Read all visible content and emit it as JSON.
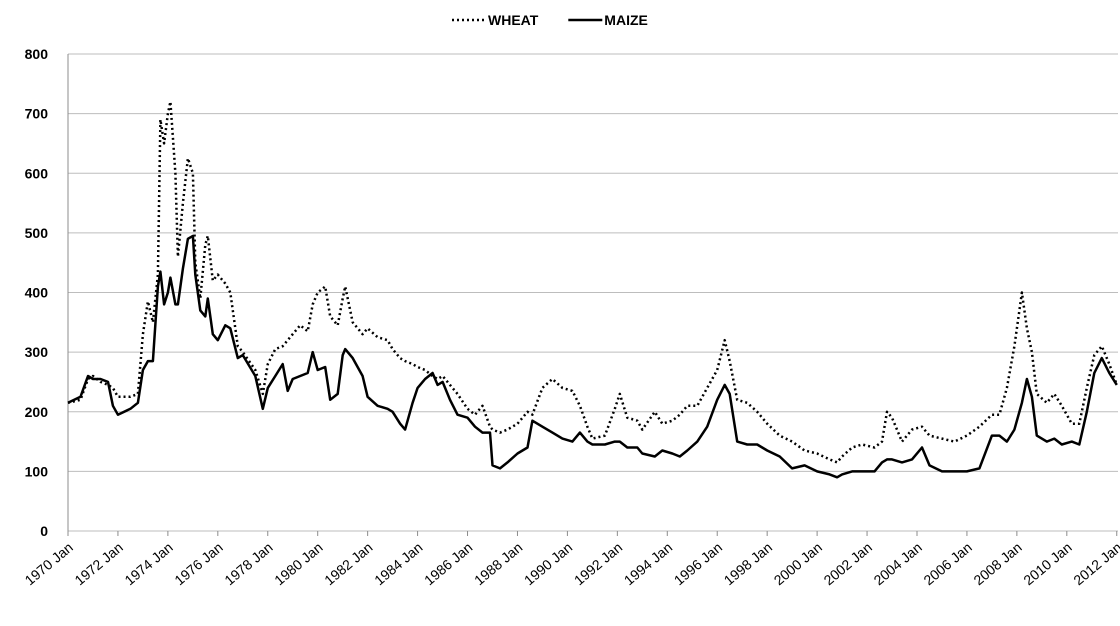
{
  "chart_data": {
    "type": "line",
    "x": [
      1970.0,
      1970.5,
      1970.8,
      1971.0,
      1971.3,
      1971.6,
      1971.8,
      1972.0,
      1972.5,
      1972.8,
      1973.0,
      1973.2,
      1973.4,
      1973.6,
      1973.7,
      1973.85,
      1974.0,
      1974.1,
      1974.3,
      1974.4,
      1974.6,
      1974.8,
      1975.0,
      1975.1,
      1975.3,
      1975.5,
      1975.6,
      1975.8,
      1976.0,
      1976.3,
      1976.5,
      1976.8,
      1977.0,
      1977.5,
      1977.8,
      1978.0,
      1978.3,
      1978.6,
      1978.8,
      1979.0,
      1979.3,
      1979.6,
      1979.8,
      1980.0,
      1980.3,
      1980.5,
      1980.8,
      1981.0,
      1981.1,
      1981.4,
      1981.8,
      1982.0,
      1982.4,
      1982.8,
      1983.0,
      1983.3,
      1983.5,
      1983.8,
      1984.0,
      1984.3,
      1984.6,
      1984.8,
      1985.0,
      1985.3,
      1985.6,
      1986.0,
      1986.3,
      1986.6,
      1986.9,
      1987.0,
      1987.3,
      1987.6,
      1988.0,
      1988.4,
      1988.6,
      1989.0,
      1989.4,
      1989.8,
      1990.2,
      1990.5,
      1990.8,
      1991.0,
      1991.5,
      1991.9,
      1992.1,
      1992.4,
      1992.8,
      1993.0,
      1993.5,
      1993.8,
      1994.2,
      1994.5,
      1994.8,
      1995.2,
      1995.6,
      1996.0,
      1996.3,
      1996.5,
      1996.8,
      1997.2,
      1997.6,
      1998.0,
      1998.5,
      1999.0,
      1999.5,
      2000.0,
      2000.5,
      2000.8,
      2001.0,
      2001.4,
      2001.8,
      2002.3,
      2002.6,
      2002.8,
      2003.0,
      2003.4,
      2003.8,
      2004.2,
      2004.5,
      2005.0,
      2005.5,
      2006.0,
      2006.5,
      2007.0,
      2007.3,
      2007.6,
      2007.9,
      2008.2,
      2008.4,
      2008.6,
      2008.8,
      2009.2,
      2009.5,
      2009.8,
      2010.2,
      2010.5,
      2010.8,
      2011.1,
      2011.4,
      2011.7,
      2012.0
    ],
    "series": [
      {
        "name": "WHEAT",
        "color": "#000000",
        "dash": "dotted",
        "values": [
          215,
          220,
          255,
          260,
          250,
          245,
          240,
          225,
          225,
          230,
          330,
          385,
          350,
          430,
          690,
          650,
          700,
          720,
          600,
          460,
          550,
          625,
          600,
          450,
          390,
          480,
          495,
          420,
          430,
          415,
          400,
          310,
          300,
          270,
          230,
          280,
          305,
          310,
          320,
          330,
          345,
          335,
          380,
          400,
          410,
          360,
          345,
          390,
          410,
          350,
          330,
          340,
          325,
          320,
          305,
          290,
          285,
          280,
          275,
          270,
          260,
          255,
          260,
          245,
          230,
          205,
          195,
          210,
          175,
          170,
          165,
          170,
          180,
          200,
          195,
          240,
          255,
          240,
          235,
          210,
          175,
          155,
          160,
          205,
          230,
          190,
          185,
          170,
          200,
          180,
          185,
          195,
          210,
          210,
          240,
          270,
          320,
          285,
          220,
          215,
          200,
          180,
          160,
          150,
          135,
          130,
          120,
          115,
          125,
          140,
          145,
          140,
          150,
          200,
          190,
          150,
          170,
          175,
          160,
          155,
          150,
          160,
          175,
          195,
          195,
          240,
          310,
          400,
          340,
          300,
          230,
          215,
          230,
          210,
          180,
          180,
          240,
          295,
          310,
          280,
          245
        ]
      },
      {
        "name": "MAIZE",
        "color": "#000000",
        "dash": "solid",
        "values": [
          215,
          225,
          260,
          255,
          255,
          250,
          210,
          195,
          205,
          215,
          270,
          285,
          285,
          410,
          435,
          380,
          400,
          425,
          380,
          380,
          440,
          490,
          495,
          430,
          370,
          360,
          390,
          330,
          320,
          345,
          340,
          290,
          295,
          260,
          205,
          240,
          260,
          280,
          235,
          255,
          260,
          265,
          300,
          270,
          275,
          220,
          230,
          295,
          305,
          290,
          260,
          225,
          210,
          205,
          200,
          180,
          170,
          215,
          240,
          255,
          265,
          245,
          250,
          220,
          195,
          190,
          175,
          165,
          165,
          110,
          105,
          115,
          130,
          140,
          185,
          175,
          165,
          155,
          150,
          165,
          150,
          145,
          145,
          150,
          150,
          140,
          140,
          130,
          125,
          135,
          130,
          125,
          135,
          150,
          175,
          220,
          245,
          230,
          150,
          145,
          145,
          135,
          125,
          105,
          110,
          100,
          95,
          90,
          95,
          100,
          100,
          100,
          115,
          120,
          120,
          115,
          120,
          140,
          110,
          100,
          100,
          100,
          105,
          160,
          160,
          150,
          170,
          215,
          255,
          225,
          160,
          150,
          155,
          145,
          150,
          145,
          200,
          265,
          290,
          265,
          245
        ]
      }
    ],
    "xlim": [
      1970,
      2012.05
    ],
    "xticks": [
      {
        "value": 1970,
        "label": "1970 Jan"
      },
      {
        "value": 1972,
        "label": "1972 Jan"
      },
      {
        "value": 1974,
        "label": "1974 Jan"
      },
      {
        "value": 1976,
        "label": "1976 Jan"
      },
      {
        "value": 1978,
        "label": "1978 Jan"
      },
      {
        "value": 1980,
        "label": "1980 Jan"
      },
      {
        "value": 1982,
        "label": "1982 Jan"
      },
      {
        "value": 1984,
        "label": "1984 Jan"
      },
      {
        "value": 1986,
        "label": "1986 Jan"
      },
      {
        "value": 1988,
        "label": "1988 Jan"
      },
      {
        "value": 1990,
        "label": "1990 Jan"
      },
      {
        "value": 1992,
        "label": "1992 Jan"
      },
      {
        "value": 1994,
        "label": "1994 Jan"
      },
      {
        "value": 1996,
        "label": "1996 Jan"
      },
      {
        "value": 1998,
        "label": "1998 Jan"
      },
      {
        "value": 2000,
        "label": "2000 Jan"
      },
      {
        "value": 2002,
        "label": "2002 Jan"
      },
      {
        "value": 2004,
        "label": "2004 Jan"
      },
      {
        "value": 2006,
        "label": "2006 Jan"
      },
      {
        "value": 2008,
        "label": "2008 Jan"
      },
      {
        "value": 2010,
        "label": "2010 Jan"
      },
      {
        "value": 2012,
        "label": "2012 Jan"
      }
    ],
    "ylim": [
      0,
      800
    ],
    "yticks": [
      0,
      100,
      200,
      300,
      400,
      500,
      600,
      700,
      800
    ],
    "grid": true
  }
}
